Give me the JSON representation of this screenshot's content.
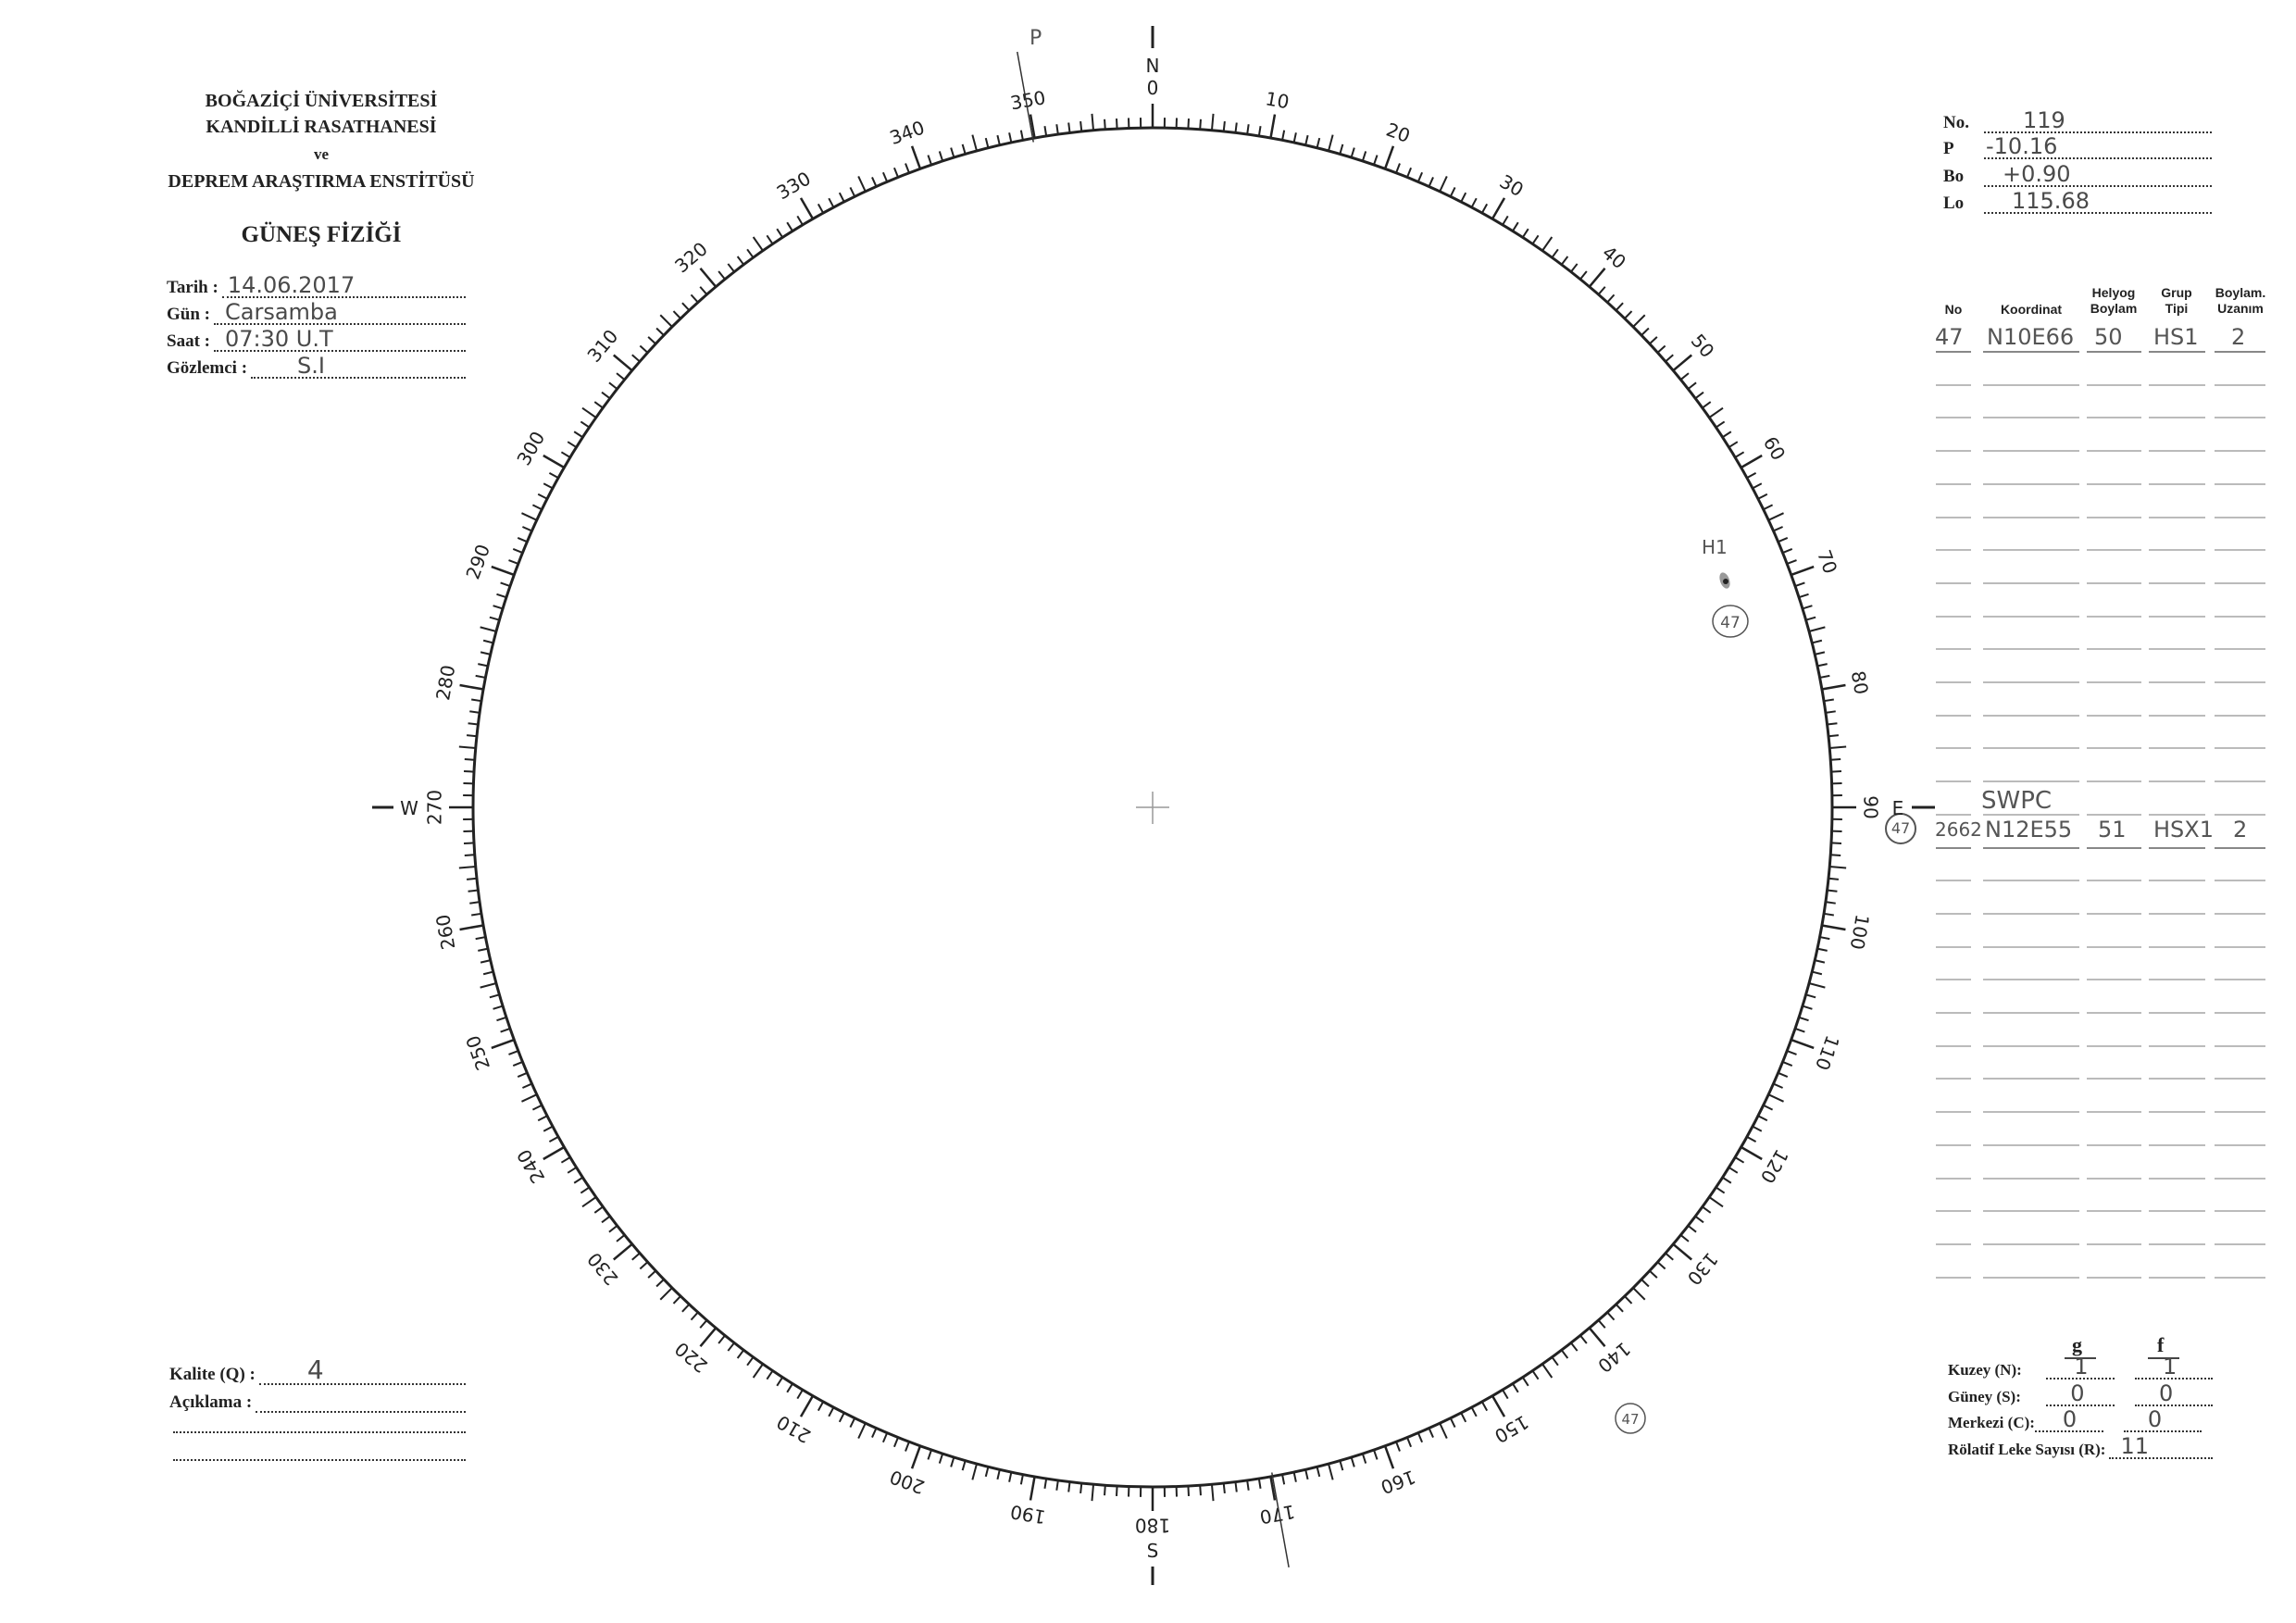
{
  "header": {
    "line1": "BOĞAZİÇİ ÜNİVERSİTESİ",
    "line2": "KANDİLLİ RASATHANESİ",
    "line3": "ve",
    "line4": "DEPREM ARAŞTIRMA ENSTİTÜSÜ",
    "title": "GÜNEŞ FİZİĞİ"
  },
  "observation": {
    "date_label": "Tarih :",
    "date_value": "14.06.2017",
    "day_label": "Gün :",
    "day_value": "Carsamba",
    "time_label": "Saat :",
    "time_value": "07:30 U.T",
    "observer_label": "Gözlemci :",
    "observer_value": "S.I"
  },
  "ephemeris": {
    "no_label": "No.",
    "no_value": "119",
    "p_label": "P",
    "p_value": "-10.16",
    "bo_label": "Bo",
    "bo_value": "+0.90",
    "lo_label": "Lo",
    "lo_value": "115.68"
  },
  "table": {
    "headers": [
      "No",
      "Koordinat",
      "Helyog\nBoylam",
      "Grup\nTipi",
      "Boylam.\nUzanım"
    ],
    "header_no": "No",
    "header_coord": "Koordinat",
    "header_helyog_1": "Helyog",
    "header_helyog_2": "Boylam",
    "header_grup_1": "Grup",
    "header_grup_2": "Tipi",
    "header_uzanim_1": "Boylam.",
    "header_uzanim_2": "Uzanım",
    "rows": [
      {
        "no": "47",
        "coord": "N10E66",
        "helyog": "50",
        "type": "HS1",
        "extent": "2"
      }
    ],
    "swpc_label": "SWPC",
    "swpc_row": {
      "no": "47",
      "region": "2662",
      "coord": "N12E55",
      "helyog": "51",
      "type": "HSX1",
      "extent": "2"
    }
  },
  "dial": {
    "north": "N",
    "south": "S",
    "east": "E",
    "west": "W",
    "labels": [
      "0",
      "10",
      "20",
      "30",
      "40",
      "50",
      "60",
      "70",
      "80",
      "90",
      "100",
      "110",
      "120",
      "130",
      "140",
      "150",
      "160",
      "170",
      "180",
      "190",
      "200",
      "210",
      "220",
      "230",
      "240",
      "250",
      "260",
      "270",
      "280",
      "290",
      "300",
      "310",
      "320",
      "330",
      "340",
      "350"
    ],
    "p_axis_label": "P",
    "p_angle_deg": -10.16
  },
  "drawing": {
    "group_label": "H1",
    "group_number": "47",
    "limb_note": "47"
  },
  "quality": {
    "quality_label": "Kalite (Q) :",
    "quality_value": "4",
    "remarks_label": "Açıklama :"
  },
  "counts": {
    "g_header": "g",
    "f_header": "f",
    "north_label": "Kuzey (N):",
    "north_g": "1",
    "north_f": "1",
    "south_label": "Güney (S):",
    "south_g": "0",
    "south_f": "0",
    "center_label": "Merkezi (C):",
    "center_g": "0",
    "center_f": "0",
    "r_label": "Rölatif Leke Sayısı (R):",
    "r_value": "11"
  }
}
